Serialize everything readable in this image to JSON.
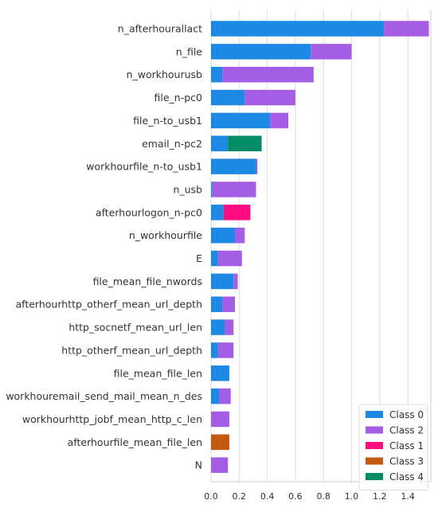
{
  "chart_data": {
    "type": "bar",
    "orientation": "horizontal",
    "stacked": true,
    "xlim": [
      0,
      1.55
    ],
    "xticks": [
      "0.0",
      "0.2",
      "0.4",
      "0.6",
      "0.8",
      "1.0",
      "1.2",
      "1.4"
    ],
    "grid": true,
    "legend_position": "bottom-right",
    "categories": [
      "n_afterhourallact",
      "n_file",
      "n_workhourusb",
      "file_n-pc0",
      "file_n-to_usb1",
      "email_n-pc2",
      "workhourfile_n-to_usb1",
      "n_usb",
      "afterhourlogon_n-pc0",
      "n_workhourfile",
      "E",
      "file_mean_file_nwords",
      "afterhourhttp_otherf_mean_url_depth",
      "http_socnetf_mean_url_len",
      "http_otherf_mean_url_depth",
      "file_mean_file_len",
      "workhouremail_send_mail_mean_n_des",
      "workhourhttp_jobf_mean_http_c_len",
      "afterhourfile_mean_file_len",
      "N"
    ],
    "series": [
      {
        "name": "Class 0",
        "color": "#1e88e5",
        "values": [
          1.23,
          0.71,
          0.08,
          0.24,
          0.42,
          0.12,
          0.32,
          0.01,
          0.09,
          0.17,
          0.05,
          0.16,
          0.08,
          0.1,
          0.05,
          0.13,
          0.06,
          0.0,
          0.0,
          0.0
        ]
      },
      {
        "name": "Class 2",
        "color": "#a45ee5",
        "values": [
          0.32,
          0.29,
          0.65,
          0.36,
          0.13,
          0.0,
          0.01,
          0.31,
          0.0,
          0.07,
          0.17,
          0.03,
          0.09,
          0.06,
          0.11,
          0.0,
          0.08,
          0.13,
          0.0,
          0.12
        ]
      },
      {
        "name": "Class 1",
        "color": "#ff0d80",
        "values": [
          0.0,
          0.0,
          0.0,
          0.0,
          0.0,
          0.0,
          0.0,
          0.0,
          0.19,
          0.0,
          0.0,
          0.0,
          0.0,
          0.0,
          0.0,
          0.0,
          0.0,
          0.0,
          0.0,
          0.0
        ]
      },
      {
        "name": "Class 3",
        "color": "#c45a0f",
        "values": [
          0.0,
          0.0,
          0.0,
          0.0,
          0.0,
          0.0,
          0.0,
          0.0,
          0.0,
          0.0,
          0.0,
          0.0,
          0.0,
          0.0,
          0.0,
          0.0,
          0.0,
          0.0,
          0.13,
          0.0
        ]
      },
      {
        "name": "Class 4",
        "color": "#008c64",
        "values": [
          0.0,
          0.0,
          0.0,
          0.0,
          0.0,
          0.24,
          0.0,
          0.0,
          0.0,
          0.0,
          0.0,
          0.0,
          0.0,
          0.0,
          0.0,
          0.0,
          0.0,
          0.0,
          0.0,
          0.0
        ]
      }
    ],
    "legend_order": [
      "Class 0",
      "Class 2",
      "Class 1",
      "Class 3",
      "Class 4"
    ]
  }
}
